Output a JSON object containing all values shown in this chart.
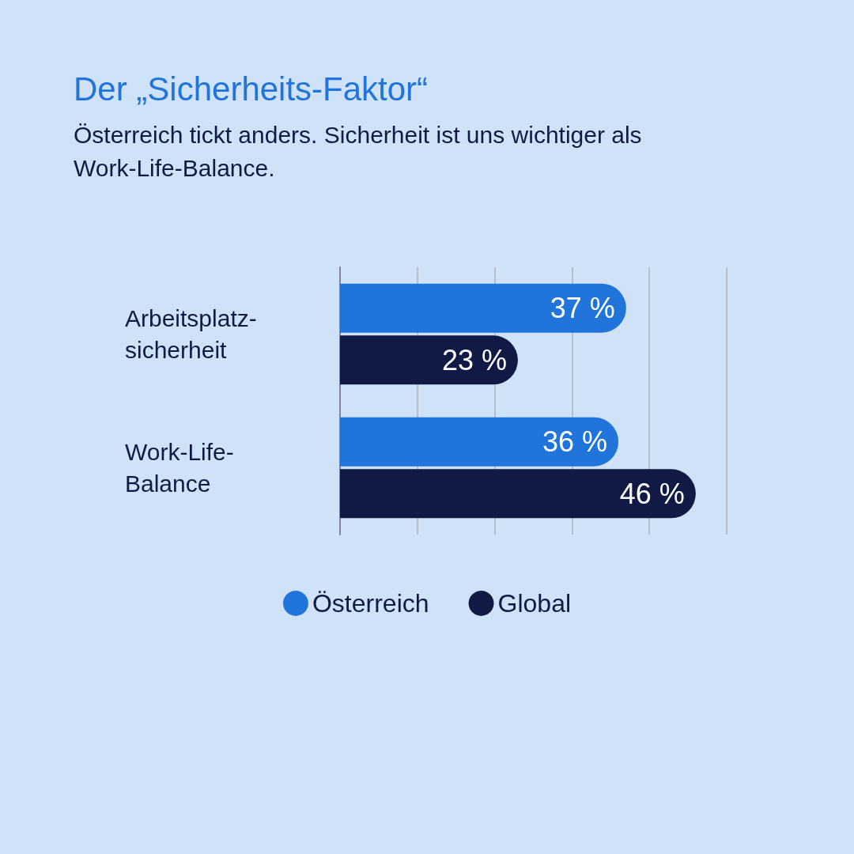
{
  "chart_data": {
    "type": "bar",
    "orientation": "horizontal",
    "title": "Der „Sicherheits-Faktor“",
    "subtitle": "Österreich tickt anders. Sicherheit ist uns wichtiger als Work-Life-Balance.",
    "categories": [
      "Arbeitsplatz-sicherheit",
      "Work-Life-Balance"
    ],
    "series": [
      {
        "name": "Österreich",
        "color": "#2174d9",
        "values": [
          37,
          36
        ],
        "value_labels": [
          "37 %",
          "36 %"
        ]
      },
      {
        "name": "Global",
        "color": "#101a44",
        "values": [
          23,
          46
        ],
        "value_labels": [
          "23 %",
          "46 %"
        ]
      }
    ],
    "xlim": [
      0,
      50
    ],
    "xticks": [
      {
        "value": 0,
        "label": null
      },
      {
        "value": 10,
        "label": null
      },
      {
        "value": 20,
        "label": null
      },
      {
        "value": 30,
        "label": null
      },
      {
        "value": 40,
        "label": null
      },
      {
        "value": 50,
        "label": null
      }
    ],
    "grid": "x",
    "tick_labels": "y",
    "legend": "bottom"
  }
}
